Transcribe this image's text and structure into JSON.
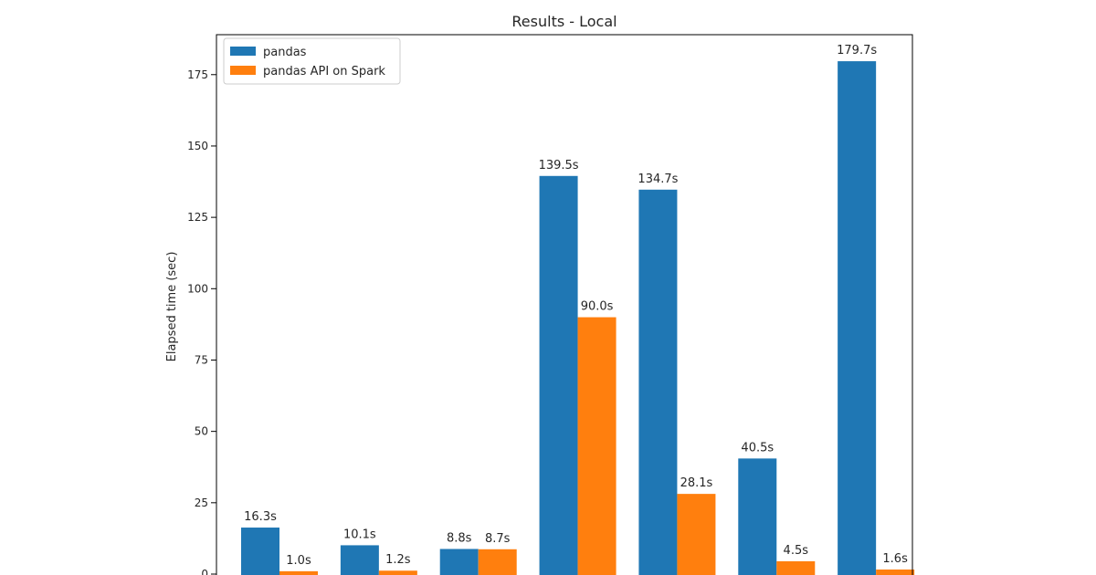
{
  "chart_data": {
    "type": "bar",
    "title": "Results - Local",
    "xlabel": "",
    "ylabel": "Elapsed time (sec)",
    "ylim": [
      0,
      189
    ],
    "yticks": [
      0,
      25,
      50,
      75,
      100,
      125,
      150,
      175
    ],
    "grid": false,
    "legend_position": "top-left",
    "categories": [
      "",
      "",
      "",
      "",
      "",
      "",
      ""
    ],
    "series": [
      {
        "name": "pandas",
        "color": "#1f77b4",
        "values": [
          16.3,
          10.1,
          8.8,
          139.5,
          134.7,
          40.5,
          179.7
        ],
        "labels": [
          "16.3s",
          "10.1s",
          "8.8s",
          "139.5s",
          "134.7s",
          "40.5s",
          "179.7s"
        ]
      },
      {
        "name": "pandas API on Spark",
        "color": "#ff7f0e",
        "values": [
          1.0,
          1.2,
          8.7,
          90.0,
          28.1,
          4.5,
          1.6
        ],
        "labels": [
          "1.0s",
          "1.2s",
          "8.7s",
          "90.0s",
          "28.1s",
          "4.5s",
          "1.6s"
        ]
      }
    ]
  }
}
